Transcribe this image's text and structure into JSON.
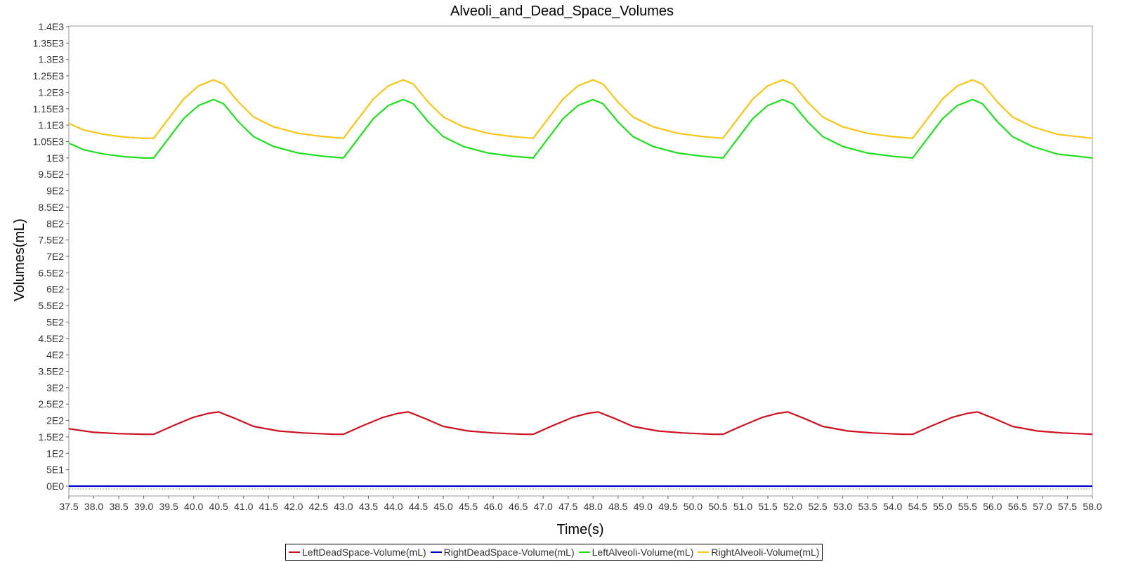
{
  "chart_data": {
    "type": "line",
    "title": "Alveoli_and_Dead_Space_Volumes",
    "xlabel": "Time(s)",
    "ylabel": "Volumes(mL)",
    "xlim": [
      37.5,
      58.0
    ],
    "ylim": [
      0,
      1400
    ],
    "x_ticks": [
      "37.5",
      "38.0",
      "38.5",
      "39.0",
      "39.5",
      "40.0",
      "40.5",
      "41.0",
      "41.5",
      "42.0",
      "42.5",
      "43.0",
      "43.5",
      "44.0",
      "44.5",
      "45.0",
      "45.5",
      "46.0",
      "46.5",
      "47.0",
      "47.5",
      "48.0",
      "48.5",
      "49.0",
      "49.5",
      "50.0",
      "50.5",
      "51.0",
      "51.5",
      "52.0",
      "52.5",
      "53.0",
      "53.5",
      "54.0",
      "54.5",
      "55.0",
      "55.5",
      "56.0",
      "56.5",
      "57.0",
      "57.5",
      "58.0"
    ],
    "y_ticks": [
      "0E0",
      "5E1",
      "1E2",
      "1.5E2",
      "2E2",
      "2.5E2",
      "3E2",
      "3.5E2",
      "4E2",
      "4.5E2",
      "5E2",
      "5.5E2",
      "6E2",
      "6.5E2",
      "7E2",
      "7.5E2",
      "8E2",
      "8.5E2",
      "9E2",
      "9.5E2",
      "1E3",
      "1.05E3",
      "1.1E3",
      "1.15E3",
      "1.2E3",
      "1.25E3",
      "1.3E3",
      "1.35E3",
      "1.4E3"
    ],
    "grid": false,
    "legend_position": "bottom",
    "series": [
      {
        "name": "LeftDeadSpace-Volume(mL)",
        "color": "#cc1122",
        "x": [
          37.5,
          38.0,
          38.5,
          39.0,
          39.2,
          39.6,
          40.0,
          40.3,
          40.5,
          40.8,
          41.2,
          41.7,
          42.2,
          42.8,
          43.0,
          43.4,
          43.8,
          44.1,
          44.3,
          44.6,
          45.0,
          45.5,
          46.0,
          46.6,
          46.8,
          47.2,
          47.6,
          47.9,
          48.1,
          48.4,
          48.8,
          49.3,
          49.8,
          50.4,
          50.6,
          51.0,
          51.4,
          51.7,
          51.9,
          52.2,
          52.6,
          53.1,
          53.6,
          54.2,
          54.4,
          54.8,
          55.2,
          55.5,
          55.7,
          56.0,
          56.4,
          56.9,
          57.4,
          58.0
        ],
        "y": [
          175,
          164,
          160,
          158,
          158,
          185,
          210,
          222,
          226,
          208,
          182,
          168,
          162,
          158,
          158,
          185,
          210,
          222,
          226,
          208,
          182,
          168,
          162,
          158,
          158,
          185,
          210,
          222,
          226,
          208,
          182,
          168,
          162,
          158,
          158,
          185,
          210,
          222,
          226,
          208,
          182,
          168,
          162,
          158,
          158,
          185,
          210,
          222,
          226,
          208,
          182,
          168,
          162,
          158
        ]
      },
      {
        "name": "RightDeadSpace-Volume(mL)",
        "color": "#0000cc",
        "x": [
          37.5,
          58.0
        ],
        "y": [
          0,
          0
        ]
      },
      {
        "name": "LeftAlveoli-Volume(mL)",
        "color": "#22dd22",
        "x": [
          37.5,
          37.8,
          38.2,
          38.6,
          39.0,
          39.2,
          39.5,
          39.8,
          40.1,
          40.4,
          40.6,
          40.9,
          41.2,
          41.6,
          42.1,
          42.6,
          43.0,
          43.3,
          43.6,
          43.9,
          44.2,
          44.4,
          44.7,
          45.0,
          45.4,
          45.9,
          46.4,
          46.8,
          47.1,
          47.4,
          47.7,
          48.0,
          48.2,
          48.5,
          48.8,
          49.2,
          49.7,
          50.2,
          50.6,
          50.9,
          51.2,
          51.5,
          51.8,
          52.0,
          52.3,
          52.6,
          53.0,
          53.5,
          54.0,
          54.4,
          54.7,
          55.0,
          55.3,
          55.6,
          55.8,
          56.1,
          56.4,
          56.8,
          57.3,
          58.0
        ],
        "y": [
          1045,
          1025,
          1012,
          1004,
          1000,
          1000,
          1060,
          1120,
          1160,
          1178,
          1165,
          1110,
          1065,
          1035,
          1015,
          1005,
          1000,
          1060,
          1120,
          1160,
          1178,
          1165,
          1110,
          1065,
          1035,
          1015,
          1005,
          1000,
          1060,
          1120,
          1160,
          1178,
          1165,
          1110,
          1065,
          1035,
          1015,
          1005,
          1000,
          1060,
          1120,
          1160,
          1178,
          1165,
          1110,
          1065,
          1035,
          1015,
          1005,
          1000,
          1060,
          1120,
          1160,
          1178,
          1165,
          1110,
          1065,
          1035,
          1012,
          1000
        ]
      },
      {
        "name": "RightAlveoli-Volume(mL)",
        "color": "#f5c518",
        "x": [
          37.5,
          37.8,
          38.2,
          38.6,
          39.0,
          39.2,
          39.5,
          39.8,
          40.1,
          40.4,
          40.6,
          40.9,
          41.2,
          41.6,
          42.1,
          42.6,
          43.0,
          43.3,
          43.6,
          43.9,
          44.2,
          44.4,
          44.7,
          45.0,
          45.4,
          45.9,
          46.4,
          46.8,
          47.1,
          47.4,
          47.7,
          48.0,
          48.2,
          48.5,
          48.8,
          49.2,
          49.7,
          50.2,
          50.6,
          50.9,
          51.2,
          51.5,
          51.8,
          52.0,
          52.3,
          52.6,
          53.0,
          53.5,
          54.0,
          54.4,
          54.7,
          55.0,
          55.3,
          55.6,
          55.8,
          56.1,
          56.4,
          56.8,
          57.3,
          58.0
        ],
        "y": [
          1105,
          1085,
          1072,
          1064,
          1060,
          1060,
          1120,
          1180,
          1220,
          1238,
          1225,
          1170,
          1125,
          1095,
          1075,
          1065,
          1060,
          1120,
          1180,
          1220,
          1238,
          1225,
          1170,
          1125,
          1095,
          1075,
          1065,
          1060,
          1120,
          1180,
          1220,
          1238,
          1225,
          1170,
          1125,
          1095,
          1075,
          1065,
          1060,
          1120,
          1180,
          1220,
          1238,
          1225,
          1170,
          1125,
          1095,
          1075,
          1065,
          1060,
          1120,
          1180,
          1220,
          1238,
          1225,
          1170,
          1125,
          1095,
          1072,
          1060
        ]
      }
    ]
  }
}
